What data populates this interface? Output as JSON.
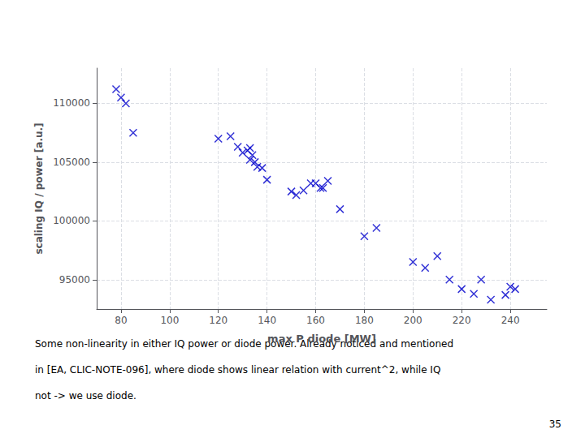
{
  "chart_data": {
    "type": "scatter",
    "x": [
      78,
      80,
      82,
      85,
      120,
      125,
      128,
      130,
      132,
      133,
      133,
      134,
      135,
      136,
      138,
      140,
      150,
      152,
      155,
      158,
      160,
      162,
      163,
      165,
      170,
      180,
      185,
      200,
      205,
      210,
      215,
      220,
      225,
      228,
      232,
      238,
      240,
      242
    ],
    "values": [
      111200,
      110500,
      110000,
      107500,
      107000,
      107200,
      106300,
      105800,
      106000,
      106200,
      105200,
      105600,
      105000,
      104600,
      104500,
      103500,
      102500,
      102200,
      102600,
      103200,
      103200,
      102800,
      102800,
      103400,
      101000,
      98700,
      99400,
      96500,
      96000,
      97000,
      95000,
      94200,
      93800,
      95000,
      93300,
      93700,
      94400,
      94200
    ],
    "xlabel": "max P diode [MW]",
    "ylabel": "scaling IQ / power [a.u.]",
    "xlim": [
      70,
      255
    ],
    "ylim": [
      92500,
      113000
    ],
    "xticks": [
      80,
      100,
      120,
      140,
      160,
      180,
      200,
      220,
      240
    ],
    "yticks": [
      95000,
      100000,
      105000,
      110000
    ],
    "color": "#0000cc",
    "marker": "x",
    "grid": true,
    "annotations": [
      "Some non-linearity in either IQ power or diode power. Already noticed and mentioned",
      "in [EA, CLIC-NOTE-096], where diode shows linear relation with current^2, while IQ",
      "not -> we use diode.",
      "35"
    ]
  }
}
